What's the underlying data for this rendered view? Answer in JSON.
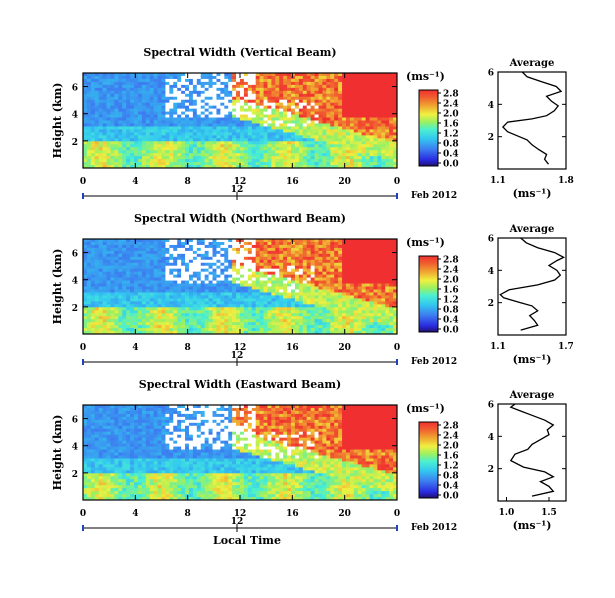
{
  "chart_data": [
    {
      "type": "heatmap",
      "title": "Spectral Width (Vertical Beam)",
      "xlabel": "",
      "ylabel": "Height (km)",
      "x_ticks": [
        "0",
        "4",
        "8",
        "12",
        "16",
        "20",
        "0"
      ],
      "y_ticks": [
        "6",
        "4",
        "2"
      ],
      "date_ticks": [
        "12"
      ],
      "date_label": "Feb 2012",
      "colorbar_unit": "(ms⁻¹)",
      "colorbar_ticks": [
        "0.0",
        "0.4",
        "0.8",
        "1.2",
        "1.6",
        "2.0",
        "2.4",
        "2.8"
      ],
      "profile": {
        "title": "Average",
        "xlabel": "(ms⁻¹)",
        "x_ticks": [
          "1.1",
          "1.8"
        ],
        "xlim": [
          1.1,
          1.8
        ],
        "y_ticks": [
          "6",
          "4",
          "2"
        ],
        "ylim": [
          0,
          6
        ],
        "points": [
          [
            1.62,
            0.3
          ],
          [
            1.58,
            0.6
          ],
          [
            1.6,
            0.9
          ],
          [
            1.52,
            1.2
          ],
          [
            1.45,
            1.5
          ],
          [
            1.4,
            1.8
          ],
          [
            1.32,
            2.0
          ],
          [
            1.2,
            2.3
          ],
          [
            1.15,
            2.6
          ],
          [
            1.2,
            2.9
          ],
          [
            1.45,
            3.1
          ],
          [
            1.6,
            3.3
          ],
          [
            1.68,
            3.6
          ],
          [
            1.72,
            3.9
          ],
          [
            1.65,
            4.2
          ],
          [
            1.6,
            4.5
          ],
          [
            1.75,
            4.8
          ],
          [
            1.7,
            5.1
          ],
          [
            1.55,
            5.4
          ],
          [
            1.4,
            5.7
          ],
          [
            1.35,
            6.0
          ]
        ]
      }
    },
    {
      "type": "heatmap",
      "title": "Spectral Width (Northward Beam)",
      "xlabel": "",
      "ylabel": "Height (km)",
      "x_ticks": [
        "0",
        "4",
        "8",
        "12",
        "16",
        "20",
        "0"
      ],
      "y_ticks": [
        "6",
        "4",
        "2"
      ],
      "date_ticks": [
        "12"
      ],
      "date_label": "Feb 2012",
      "colorbar_unit": "(ms⁻¹)",
      "colorbar_ticks": [
        "0.0",
        "0.4",
        "0.8",
        "1.2",
        "1.6",
        "2.0",
        "2.4",
        "2.8"
      ],
      "profile": {
        "title": "Average",
        "xlabel": "(ms⁻¹)",
        "x_ticks": [
          "1.1",
          "1.7"
        ],
        "xlim": [
          1.1,
          1.7
        ],
        "y_ticks": [
          "6",
          "4",
          "2"
        ],
        "ylim": [
          0,
          6
        ],
        "points": [
          [
            1.3,
            0.3
          ],
          [
            1.45,
            0.6
          ],
          [
            1.42,
            0.9
          ],
          [
            1.38,
            1.2
          ],
          [
            1.45,
            1.5
          ],
          [
            1.4,
            1.8
          ],
          [
            1.3,
            2.0
          ],
          [
            1.15,
            2.3
          ],
          [
            1.12,
            2.5
          ],
          [
            1.2,
            2.8
          ],
          [
            1.45,
            3.1
          ],
          [
            1.6,
            3.4
          ],
          [
            1.65,
            3.7
          ],
          [
            1.62,
            4.0
          ],
          [
            1.55,
            4.3
          ],
          [
            1.62,
            4.6
          ],
          [
            1.68,
            4.8
          ],
          [
            1.6,
            5.1
          ],
          [
            1.45,
            5.4
          ],
          [
            1.35,
            5.7
          ],
          [
            1.3,
            6.0
          ]
        ]
      }
    },
    {
      "type": "heatmap",
      "title": "Spectral Width (Eastward Beam)",
      "xlabel": "Local Time",
      "ylabel": "Height (km)",
      "x_ticks": [
        "0",
        "4",
        "8",
        "12",
        "16",
        "20",
        "0"
      ],
      "y_ticks": [
        "6",
        "4",
        "2"
      ],
      "date_ticks": [
        "12"
      ],
      "date_label": "Feb 2012",
      "colorbar_unit": "(ms⁻¹)",
      "colorbar_ticks": [
        "0.0",
        "0.4",
        "0.8",
        "1.2",
        "1.6",
        "2.0",
        "2.4",
        "2.8"
      ],
      "profile": {
        "title": "Average",
        "xlabel": "(ms⁻¹)",
        "x_ticks": [
          "1.0",
          "1.5"
        ],
        "xlim": [
          0.9,
          1.7
        ],
        "y_ticks": [
          "6",
          "4",
          "2"
        ],
        "ylim": [
          0,
          6
        ],
        "points": [
          [
            1.3,
            0.3
          ],
          [
            1.55,
            0.6
          ],
          [
            1.5,
            0.9
          ],
          [
            1.4,
            1.2
          ],
          [
            1.55,
            1.5
          ],
          [
            1.45,
            1.8
          ],
          [
            1.2,
            2.1
          ],
          [
            1.05,
            2.5
          ],
          [
            1.1,
            2.9
          ],
          [
            1.25,
            3.2
          ],
          [
            1.3,
            3.5
          ],
          [
            1.4,
            3.8
          ],
          [
            1.5,
            4.1
          ],
          [
            1.48,
            4.4
          ],
          [
            1.55,
            4.7
          ],
          [
            1.45,
            5.0
          ],
          [
            1.3,
            5.3
          ],
          [
            1.15,
            5.6
          ],
          [
            1.05,
            5.8
          ],
          [
            1.1,
            6.0
          ]
        ]
      }
    }
  ]
}
